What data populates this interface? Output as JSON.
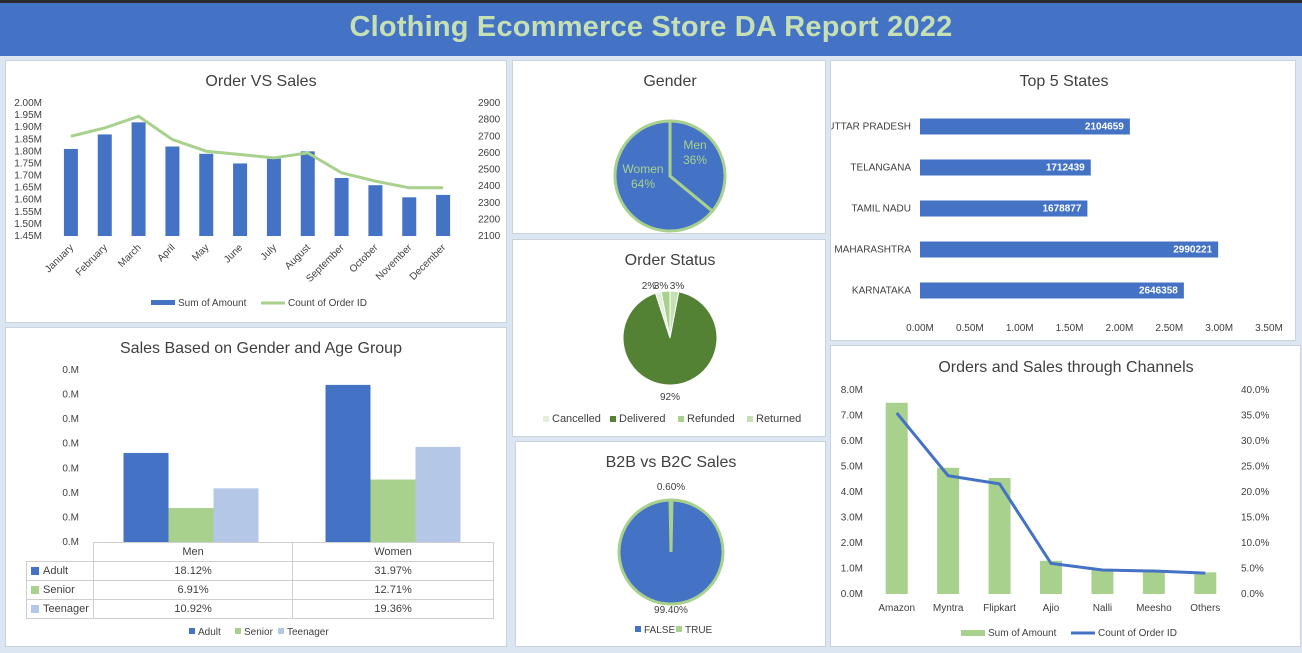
{
  "header": {
    "title": "Clothing Ecommerce Store DA Report 2022"
  },
  "colors": {
    "blue": "#4472c4",
    "green": "#a9d18e",
    "light_blue": "#b4c7e7",
    "dark_green": "#548235",
    "pale_green": "#c5e0b4",
    "very_pale": "#e2efda"
  },
  "order_vs_sales": {
    "title": "Order VS Sales",
    "legend": [
      "Sum of Amount",
      "Count of Order ID"
    ],
    "left_ticks": [
      "2.00M",
      "1.95M",
      "1.90M",
      "1.85M",
      "1.80M",
      "1.75M",
      "1.70M",
      "1.65M",
      "1.60M",
      "1.55M",
      "1.50M",
      "1.45M"
    ],
    "right_ticks": [
      "2900",
      "2800",
      "2700",
      "2600",
      "2500",
      "2400",
      "2300",
      "2200",
      "2100"
    ]
  },
  "gender": {
    "title": "Gender",
    "men_label": "Men",
    "men_pct": "36%",
    "women_label": "Women",
    "women_pct": "64%"
  },
  "order_status": {
    "title": "Order Status",
    "labels": [
      "2%",
      "3%",
      "3%",
      "92%"
    ],
    "legend": [
      "Cancelled",
      "Delivered",
      "Refunded",
      "Returned"
    ]
  },
  "b2b": {
    "title": "B2B vs B2C Sales",
    "labels": [
      "0.60%",
      "99.40%"
    ],
    "legend": [
      "FALSE",
      "TRUE"
    ]
  },
  "top_states": {
    "title": "Top 5 States",
    "x_ticks": [
      "0.00M",
      "0.50M",
      "1.00M",
      "1.50M",
      "2.00M",
      "2.50M",
      "3.00M",
      "3.50M"
    ]
  },
  "gender_age": {
    "title": "Sales Based on Gender and Age Group",
    "y_ticks": [
      "0.M",
      "0.M",
      "0.M",
      "0.M",
      "0.M",
      "0.M",
      "0.M",
      "0.M"
    ],
    "columns": [
      "Men",
      "Women"
    ],
    "rows": [
      {
        "name": "Adult",
        "values": [
          "18.12%",
          "31.97%"
        ]
      },
      {
        "name": "Senior",
        "values": [
          "6.91%",
          "12.71%"
        ]
      },
      {
        "name": "Teenager",
        "values": [
          "10.92%",
          "19.36%"
        ]
      }
    ],
    "legend": [
      "Adult",
      "Senior",
      "Teenager"
    ]
  },
  "channels": {
    "title": "Orders and Sales through Channels",
    "left_ticks": [
      "8.0M",
      "7.0M",
      "6.0M",
      "5.0M",
      "4.0M",
      "3.0M",
      "2.0M",
      "1.0M",
      "0.0M"
    ],
    "right_ticks": [
      "40.0%",
      "35.0%",
      "30.0%",
      "25.0%",
      "20.0%",
      "15.0%",
      "10.0%",
      "5.0%",
      "0.0%"
    ],
    "legend": [
      "Sum of Amount",
      "Count of Order ID"
    ]
  },
  "chart_data": [
    {
      "type": "bar",
      "title": "Order VS Sales",
      "categories": [
        "January",
        "February",
        "March",
        "April",
        "May",
        "June",
        "July",
        "August",
        "September",
        "October",
        "November",
        "December"
      ],
      "series": [
        {
          "name": "Sum of Amount",
          "type": "bar",
          "axis": "left",
          "values": [
            1.81,
            1.87,
            1.92,
            1.82,
            1.79,
            1.75,
            1.77,
            1.8,
            1.69,
            1.66,
            1.61,
            1.62
          ]
        },
        {
          "name": "Count of Order ID",
          "type": "line",
          "axis": "right",
          "values": [
            2700,
            2750,
            2820,
            2680,
            2610,
            2590,
            2570,
            2600,
            2480,
            2430,
            2390,
            2390
          ]
        }
      ],
      "ylim": [
        1.45,
        2.0
      ],
      "y2lim": [
        2100,
        2900
      ]
    },
    {
      "type": "pie",
      "title": "Gender",
      "categories": [
        "Men",
        "Women"
      ],
      "values": [
        36,
        64
      ]
    },
    {
      "type": "pie",
      "title": "Order Status",
      "categories": [
        "Cancelled",
        "Delivered",
        "Refunded",
        "Returned"
      ],
      "values": [
        2,
        92,
        3,
        3
      ]
    },
    {
      "type": "pie",
      "title": "B2B vs B2C Sales",
      "categories": [
        "FALSE",
        "TRUE"
      ],
      "values": [
        99.4,
        0.6
      ]
    },
    {
      "type": "bar",
      "title": "Top 5 States",
      "orientation": "horizontal",
      "categories": [
        "UTTAR PRADESH",
        "TELANGANA",
        "TAMIL NADU",
        "MAHARASHTRA",
        "KARNATAKA"
      ],
      "values": [
        2104659,
        1712439,
        1678877,
        2990221,
        2646358
      ],
      "xlim": [
        0,
        3500000
      ]
    },
    {
      "type": "bar",
      "title": "Sales Based on Gender and Age Group",
      "categories": [
        "Men",
        "Women"
      ],
      "series": [
        {
          "name": "Adult",
          "values": [
            18.12,
            31.97
          ]
        },
        {
          "name": "Senior",
          "values": [
            6.91,
            12.71
          ]
        },
        {
          "name": "Teenager",
          "values": [
            10.92,
            19.36
          ]
        }
      ]
    },
    {
      "type": "bar",
      "title": "Orders and Sales through Channels",
      "categories": [
        "Amazon",
        "Myntra",
        "Flipkart",
        "Ajio",
        "Nalli",
        "Meesho",
        "Others"
      ],
      "series": [
        {
          "name": "Sum of Amount",
          "type": "bar",
          "axis": "left",
          "values": [
            7.5,
            4.95,
            4.55,
            1.3,
            0.95,
            0.9,
            0.85
          ]
        },
        {
          "name": "Count of Order ID",
          "type": "line",
          "axis": "right",
          "values": [
            35.5,
            23.2,
            21.6,
            6.0,
            4.7,
            4.5,
            4.1
          ]
        }
      ],
      "ylim": [
        0,
        8
      ],
      "y2lim": [
        0,
        40
      ]
    }
  ]
}
